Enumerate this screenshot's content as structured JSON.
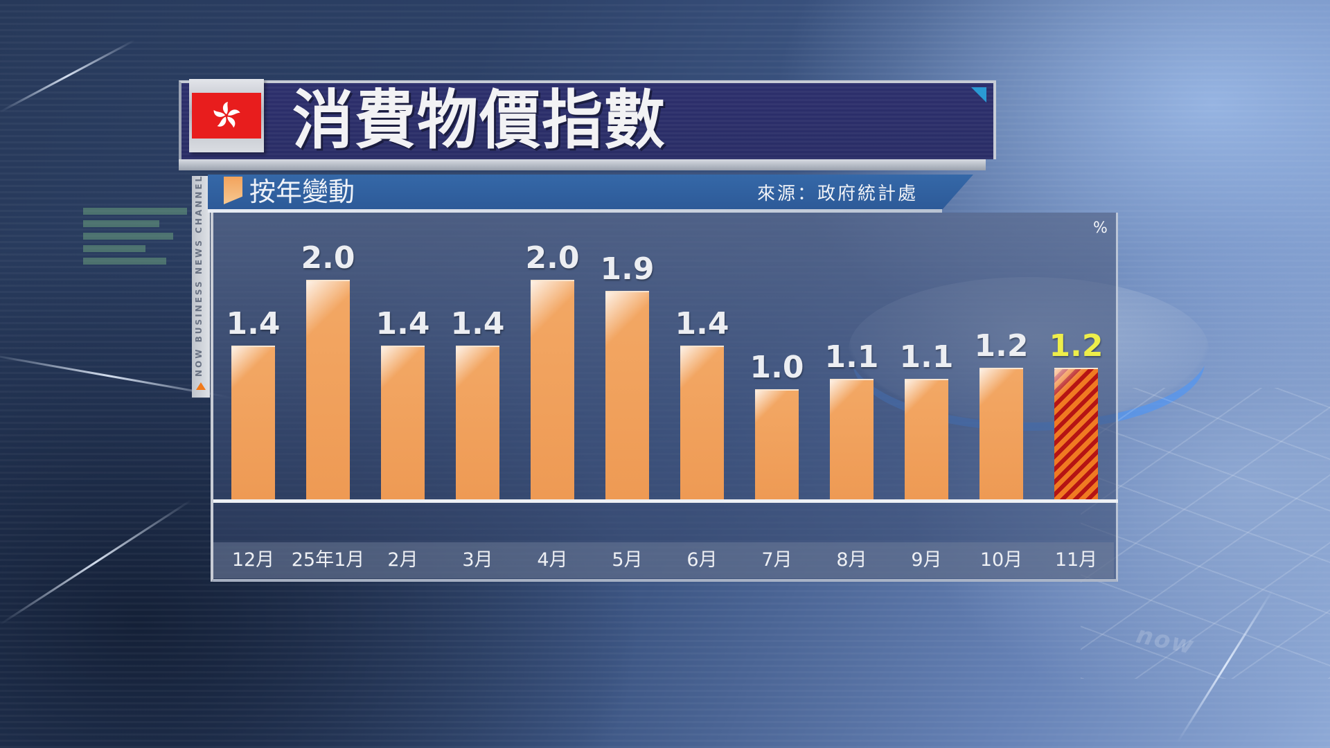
{
  "header": {
    "title": "消費物價指數",
    "flag": "hong-kong-flag"
  },
  "subheader": {
    "title": "按年變動",
    "source": "來源：政府統計處"
  },
  "side_tag": {
    "text": "NOW BUSINESS NEWS CHANNEL"
  },
  "background": {
    "watermark": "now"
  },
  "colors": {
    "bar": "#ee9a54",
    "highlight_stripe_a": "#f07a22",
    "highlight_stripe_b": "#b51414",
    "highlight_label": "#eeee4a",
    "header_band": "#2a2d66",
    "subheader_band": "#2d5a98",
    "flag_red": "#e81d1d"
  },
  "chart_data": {
    "type": "bar",
    "title": "消費物價指數",
    "subtitle": "按年變動",
    "source": "來源：政府統計處",
    "unit": "%",
    "xlabel": "",
    "ylabel": "%",
    "categories": [
      "12月",
      "25年1月",
      "2月",
      "3月",
      "4月",
      "5月",
      "6月",
      "7月",
      "8月",
      "9月",
      "10月",
      "11月"
    ],
    "values": [
      1.4,
      2.0,
      1.4,
      1.4,
      2.0,
      1.9,
      1.4,
      1.0,
      1.1,
      1.1,
      1.2,
      1.2
    ],
    "value_labels": [
      "1.4",
      "2.0",
      "1.4",
      "1.4",
      "2.0",
      "1.9",
      "1.4",
      "1.0",
      "1.1",
      "1.1",
      "1.2",
      "1.2"
    ],
    "highlight_index": 11,
    "ylim": [
      0,
      2.2
    ],
    "grid": false,
    "legend": null
  }
}
